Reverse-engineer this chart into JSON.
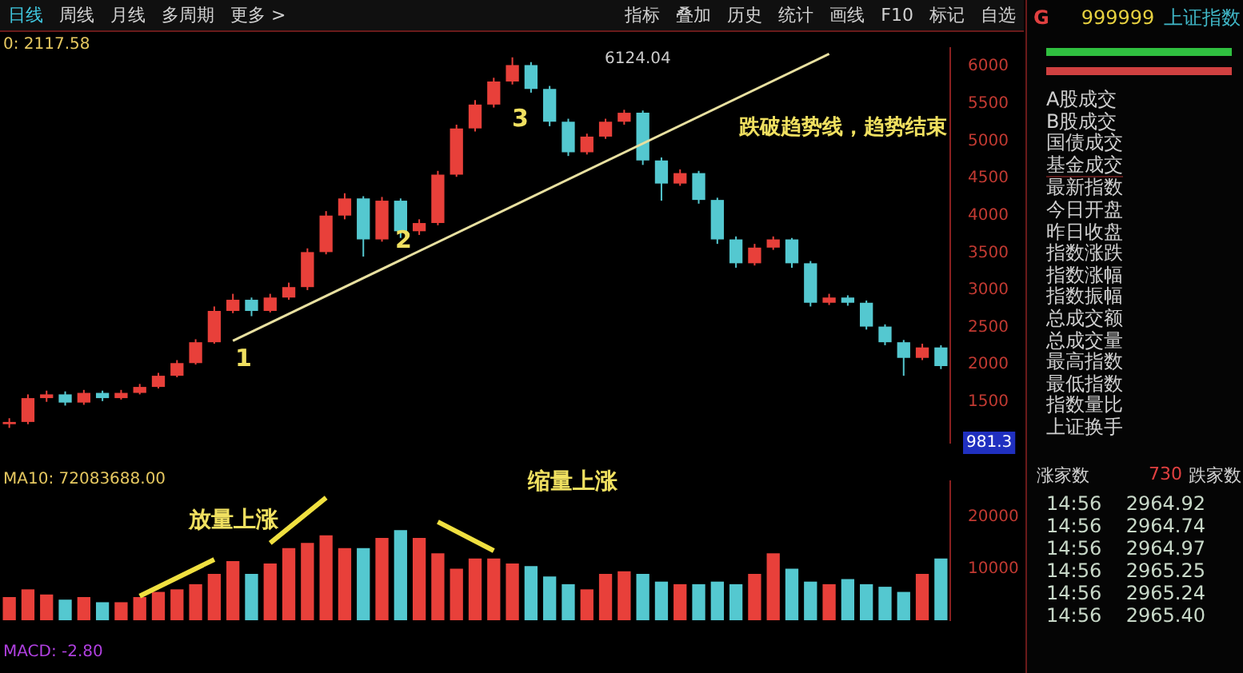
{
  "chart_data": [
    {
      "type": "other",
      "annotations": [
        "日线",
        "周线",
        "月线",
        "多周期",
        "更多 >",
        "指标",
        "叠加",
        "历史",
        "统计",
        "画线",
        "F10",
        "标记",
        "自选"
      ]
    },
    {
      "type": "candlestick",
      "categories": [
        null,
        null,
        null,
        null,
        null,
        null,
        null,
        null,
        null,
        null,
        null,
        null,
        null,
        null,
        null,
        null,
        null,
        null,
        null,
        null,
        null,
        null,
        null,
        null,
        null,
        null,
        null,
        null,
        null,
        null,
        null,
        null,
        null,
        null,
        null,
        null,
        null,
        null,
        null,
        null,
        null,
        null,
        null,
        null,
        null,
        null,
        null,
        null,
        null,
        null,
        null
      ],
      "ohlc": [
        [
          1200,
          1280,
          1150,
          1230
        ],
        [
          1230,
          1600,
          1200,
          1550
        ],
        [
          1550,
          1650,
          1500,
          1600
        ],
        [
          1600,
          1640,
          1450,
          1490
        ],
        [
          1490,
          1660,
          1460,
          1620
        ],
        [
          1620,
          1650,
          1510,
          1550
        ],
        [
          1550,
          1660,
          1530,
          1620
        ],
        [
          1620,
          1740,
          1600,
          1700
        ],
        [
          1700,
          1890,
          1680,
          1850
        ],
        [
          1850,
          2060,
          1830,
          2020
        ],
        [
          2020,
          2340,
          2000,
          2300
        ],
        [
          2300,
          2780,
          2280,
          2720
        ],
        [
          2720,
          2950,
          2690,
          2870
        ],
        [
          2870,
          2900,
          2650,
          2720
        ],
        [
          2720,
          2950,
          2700,
          2900
        ],
        [
          2900,
          3100,
          2870,
          3040
        ],
        [
          3040,
          3560,
          3000,
          3510
        ],
        [
          3510,
          4060,
          3480,
          4000
        ],
        [
          4000,
          4300,
          3950,
          4230
        ],
        [
          4230,
          4260,
          3450,
          3680
        ],
        [
          3680,
          4250,
          3650,
          4200
        ],
        [
          4200,
          4230,
          3700,
          3790
        ],
        [
          3790,
          3950,
          3740,
          3900
        ],
        [
          3900,
          4600,
          3870,
          4550
        ],
        [
          4550,
          5220,
          4520,
          5170
        ],
        [
          5170,
          5550,
          5130,
          5490
        ],
        [
          5490,
          5850,
          5450,
          5800
        ],
        [
          5800,
          6124.04,
          5760,
          6020
        ],
        [
          6020,
          6060,
          5650,
          5700
        ],
        [
          5700,
          5740,
          5200,
          5260
        ],
        [
          5260,
          5300,
          4800,
          4850
        ],
        [
          4850,
          5100,
          4820,
          5060
        ],
        [
          5060,
          5300,
          5030,
          5260
        ],
        [
          5260,
          5420,
          5220,
          5380
        ],
        [
          5380,
          5410,
          4680,
          4740
        ],
        [
          4740,
          4780,
          4200,
          4430
        ],
        [
          4430,
          4620,
          4400,
          4570
        ],
        [
          4570,
          4600,
          4160,
          4210
        ],
        [
          4210,
          4240,
          3620,
          3680
        ],
        [
          3680,
          3720,
          3300,
          3360
        ],
        [
          3360,
          3620,
          3330,
          3570
        ],
        [
          3570,
          3720,
          3540,
          3680
        ],
        [
          3680,
          3700,
          3300,
          3360
        ],
        [
          3360,
          3390,
          2780,
          2830
        ],
        [
          2830,
          2950,
          2800,
          2900
        ],
        [
          2900,
          2930,
          2790,
          2830
        ],
        [
          2830,
          2860,
          2470,
          2510
        ],
        [
          2510,
          2540,
          2260,
          2300
        ],
        [
          2300,
          2330,
          1850,
          2090
        ],
        [
          2090,
          2280,
          2060,
          2230
        ],
        [
          2230,
          2260,
          1940,
          1980
        ]
      ],
      "colors": [
        "#e8403a",
        "#e8403a",
        "#e8403a",
        "#54c8d0",
        "#e8403a",
        "#54c8d0",
        "#e8403a",
        "#e8403a",
        "#e8403a",
        "#e8403a",
        "#e8403a",
        "#e8403a",
        "#e8403a",
        "#54c8d0",
        "#e8403a",
        "#e8403a",
        "#e8403a",
        "#e8403a",
        "#e8403a",
        "#54c8d0",
        "#e8403a",
        "#54c8d0",
        "#e8403a",
        "#e8403a",
        "#e8403a",
        "#e8403a",
        "#e8403a",
        "#e8403a",
        "#54c8d0",
        "#54c8d0",
        "#54c8d0",
        "#e8403a",
        "#e8403a",
        "#e8403a",
        "#54c8d0",
        "#54c8d0",
        "#e8403a",
        "#54c8d0",
        "#54c8d0",
        "#54c8d0",
        "#e8403a",
        "#e8403a",
        "#54c8d0",
        "#54c8d0",
        "#e8403a",
        "#54c8d0",
        "#54c8d0",
        "#54c8d0",
        "#54c8d0",
        "#e8403a",
        "#54c8d0"
      ],
      "series": [
        {
          "type": "line",
          "color": "#e8e0a0",
          "values": [
            null,
            null,
            null,
            null,
            null,
            null,
            null,
            null,
            null,
            null,
            null,
            null,
            2320,
            null,
            null,
            null,
            null,
            null,
            null,
            null,
            null,
            null,
            null,
            null,
            null,
            null,
            null,
            null,
            null,
            null,
            null,
            null,
            null,
            null,
            null,
            null,
            null,
            null,
            null,
            null,
            null,
            null,
            null,
            null,
            6170,
            null,
            null,
            null,
            null,
            null,
            null
          ]
        }
      ],
      "ylim": [
        950,
        6250
      ],
      "yticks": [
        1500,
        2000,
        2500,
        3000,
        3500,
        4000,
        4500,
        5000,
        5500,
        6000
      ],
      "annotations": [
        "0: 2117.58",
        "6124.04",
        "1",
        "2",
        "3",
        "跌破趋势线，趋势结束",
        "981.3"
      ]
    },
    {
      "type": "bar",
      "categories": [
        null,
        null,
        null,
        null,
        null,
        null,
        null,
        null,
        null,
        null,
        null,
        null,
        null,
        null,
        null,
        null,
        null,
        null,
        null,
        null,
        null,
        null,
        null,
        null,
        null,
        null,
        null,
        null,
        null,
        null,
        null,
        null,
        null,
        null,
        null,
        null,
        null,
        null,
        null,
        null,
        null,
        null,
        null,
        null,
        null,
        null,
        null,
        null,
        null,
        null,
        null
      ],
      "series": [
        {
          "type": "bar",
          "colors": [
            "#e8403a",
            "#e8403a",
            "#e8403a",
            "#54c8d0",
            "#e8403a",
            "#54c8d0",
            "#e8403a",
            "#e8403a",
            "#e8403a",
            "#e8403a",
            "#e8403a",
            "#e8403a",
            "#e8403a",
            "#54c8d0",
            "#e8403a",
            "#e8403a",
            "#e8403a",
            "#e8403a",
            "#e8403a",
            "#54c8d0",
            "#e8403a",
            "#54c8d0",
            "#e8403a",
            "#e8403a",
            "#e8403a",
            "#e8403a",
            "#e8403a",
            "#e8403a",
            "#54c8d0",
            "#54c8d0",
            "#54c8d0",
            "#e8403a",
            "#e8403a",
            "#e8403a",
            "#54c8d0",
            "#54c8d0",
            "#e8403a",
            "#54c8d0",
            "#54c8d0",
            "#54c8d0",
            "#e8403a",
            "#e8403a",
            "#54c8d0",
            "#54c8d0",
            "#e8403a",
            "#54c8d0",
            "#54c8d0",
            "#54c8d0",
            "#54c8d0",
            "#e8403a",
            "#54c8d0"
          ],
          "values": [
            4500,
            6000,
            5000,
            4000,
            4500,
            3500,
            3500,
            4500,
            5500,
            6000,
            7000,
            9000,
            11500,
            9000,
            11000,
            14000,
            15000,
            16500,
            14000,
            14000,
            16000,
            17500,
            16000,
            13000,
            10000,
            12000,
            12000,
            11000,
            10500,
            8500,
            7000,
            6000,
            9000,
            9500,
            9000,
            7500,
            7000,
            7000,
            7500,
            7000,
            9000,
            13000,
            10000,
            7500,
            7000,
            8000,
            7000,
            6500,
            5500,
            9000,
            12000
          ]
        },
        {
          "type": "line",
          "color": "#f0e040",
          "values": [
            null,
            null,
            null,
            null,
            null,
            null,
            null,
            4700,
            null,
            null,
            null,
            11800,
            null,
            null,
            null,
            null,
            null,
            null,
            null,
            null,
            null,
            null,
            null,
            null,
            null,
            null,
            null,
            null,
            null,
            null,
            null,
            null,
            null,
            null,
            null,
            null,
            null,
            null,
            null,
            null,
            null,
            null,
            null,
            null,
            null,
            null,
            null,
            null,
            null,
            null,
            null
          ]
        },
        {
          "type": "line",
          "color": "#f0e040",
          "values": [
            null,
            null,
            null,
            null,
            null,
            null,
            null,
            null,
            null,
            null,
            null,
            null,
            null,
            null,
            15000,
            null,
            null,
            23800,
            null,
            null,
            null,
            null,
            null,
            null,
            null,
            null,
            null,
            null,
            null,
            null,
            null,
            null,
            null,
            null,
            null,
            null,
            null,
            null,
            null,
            null,
            null,
            null,
            null,
            null,
            null,
            null,
            null,
            null,
            null,
            null,
            null
          ]
        },
        {
          "type": "line",
          "color": "#f0e040",
          "values": [
            null,
            null,
            null,
            null,
            null,
            null,
            null,
            null,
            null,
            null,
            null,
            null,
            null,
            null,
            null,
            null,
            null,
            null,
            null,
            null,
            null,
            null,
            null,
            19100,
            null,
            null,
            13500,
            null,
            null,
            null,
            null,
            null,
            null,
            null,
            null,
            null,
            null,
            null,
            null,
            null,
            null,
            null,
            null,
            null,
            null,
            null,
            null,
            null,
            null,
            null,
            null
          ]
        }
      ],
      "ylim": [
        0,
        27000
      ],
      "yticks": [
        10000,
        20000
      ],
      "annotations": [
        "MA10: 72083688.00",
        "放量上涨",
        "缩量上涨",
        "MACD: -2.80"
      ]
    },
    {
      "type": "other",
      "annotations": [
        "G",
        "999999",
        "上证指数",
        "A股成交",
        "B股成交",
        "国债成交",
        "基金成交",
        "最新指数",
        "今日开盘",
        "昨日收盘",
        "指数涨跌",
        "指数涨幅",
        "指数振幅",
        "总成交额",
        "总成交量",
        "最高指数",
        "最低指数",
        "指数量比",
        "上证换手",
        "涨家数",
        "730",
        "跌家数",
        "14:56    2964.92",
        "14:56    2964.74",
        "14:56    2964.97",
        "14:56    2965.25",
        "14:56    2965.24",
        "14:56    2965.40"
      ]
    }
  ]
}
